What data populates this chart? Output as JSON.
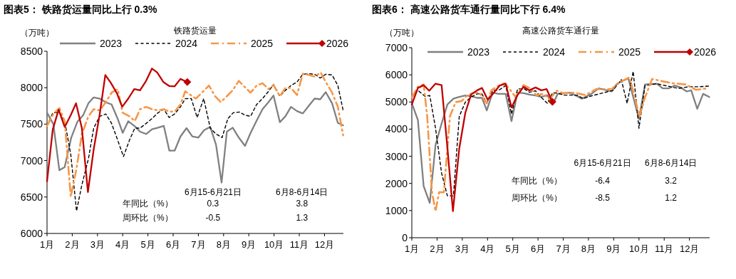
{
  "chart_data": [
    {
      "type": "line",
      "title": "图表5：  铁路货运量同比上行 0.3%",
      "subtitle": "铁路货运量",
      "ylabel": "（万吨）",
      "legend": "top",
      "xlim": [
        1,
        12.75
      ],
      "xticks": [
        {
          "value": 1,
          "label": "1月"
        },
        {
          "value": 2,
          "label": "2月"
        },
        {
          "value": 3,
          "label": "3月"
        },
        {
          "value": 4,
          "label": "4月"
        },
        {
          "value": 5,
          "label": "5月"
        },
        {
          "value": 6,
          "label": "6月"
        },
        {
          "value": 7,
          "label": "7月"
        },
        {
          "value": 8,
          "label": "8月"
        },
        {
          "value": 9,
          "label": "9月"
        },
        {
          "value": 10,
          "label": "10月"
        },
        {
          "value": 11,
          "label": "11月"
        },
        {
          "value": 12,
          "label": "12月"
        }
      ],
      "ylim": [
        6000,
        8500
      ],
      "yticks": [
        6000,
        6500,
        7000,
        7500,
        8000,
        8500
      ],
      "annotations": [
        "6月15-6月21日",
        "6月8-6月14日",
        "年同比（%）",
        "0.3",
        "3.8",
        "周环比（%）",
        "-0.5",
        "1.3"
      ],
      "series": [
        {
          "name": "2023",
          "color": "#808080",
          "line_style": "solid",
          "x": [
            1.0,
            1.25,
            1.49,
            1.7,
            1.96,
            2.2,
            2.43,
            2.64,
            2.85,
            3.09,
            3.33,
            3.56,
            3.8,
            4.0,
            4.22,
            4.46,
            4.69,
            4.93,
            5.16,
            5.4,
            5.63,
            5.85,
            6.06,
            6.29,
            6.53,
            6.76,
            7.0,
            7.23,
            7.47,
            7.7,
            7.92,
            8.13,
            8.36,
            8.6,
            8.85,
            9.07,
            9.31,
            9.54,
            9.78,
            9.98,
            10.23,
            10.45,
            10.67,
            10.91,
            11.14,
            11.38,
            11.61,
            11.83,
            12.05,
            12.3,
            12.53,
            12.74
          ],
          "values": [
            7656,
            7500,
            6867,
            6910,
            7315,
            7530,
            7620,
            7786,
            7867,
            7850,
            7800,
            7770,
            7575,
            7380,
            7540,
            7477,
            7396,
            7364,
            7429,
            7451,
            7477,
            7136,
            7136,
            7331,
            7445,
            7331,
            7315,
            7419,
            7461,
            7217,
            6698,
            7396,
            7451,
            7315,
            7201,
            7380,
            7549,
            7705,
            7802,
            7893,
            7526,
            7607,
            7737,
            7679,
            7646,
            7753,
            7851,
            7841,
            7938,
            7786,
            7516,
            7484
          ]
        },
        {
          "name": "2024",
          "color": "#000000",
          "line_style": "dashed",
          "x": [
            1.0,
            1.23,
            1.49,
            1.7,
            1.94,
            2.17,
            2.38,
            2.64,
            2.85,
            3.09,
            3.33,
            3.56,
            3.8,
            4.03,
            4.27,
            4.48,
            4.69,
            4.93,
            5.16,
            5.4,
            5.63,
            5.84,
            6.06,
            6.29,
            6.48,
            6.72,
            6.95,
            7.21,
            7.47,
            7.7,
            7.94,
            8.17,
            8.38,
            8.63,
            8.85,
            9.07,
            9.31,
            9.54,
            9.78,
            9.98,
            10.23,
            10.45,
            10.67,
            10.91,
            11.14,
            11.38,
            11.61,
            11.83,
            12.05,
            12.3,
            12.53,
            12.74
          ],
          "values": [
            7477,
            7656,
            7656,
            7542,
            7088,
            6308,
            6666,
            7023,
            7445,
            7607,
            7640,
            7510,
            7282,
            7055,
            7282,
            7445,
            7445,
            7510,
            7575,
            7656,
            7705,
            7591,
            7640,
            7737,
            7850,
            7851,
            7591,
            7851,
            7445,
            7364,
            7315,
            7575,
            7656,
            7666,
            7623,
            7607,
            7770,
            7851,
            7948,
            8045,
            7883,
            7964,
            8029,
            8078,
            8185,
            8192,
            8185,
            8133,
            8185,
            8175,
            8029,
            7688
          ]
        },
        {
          "name": "2025",
          "color": "#f79646",
          "line_style": "dashdot",
          "x": [
            1.0,
            1.25,
            1.49,
            1.7,
            1.94,
            2.17,
            2.38,
            2.64,
            2.85,
            3.09,
            3.33,
            3.56,
            3.8,
            4.0,
            4.27,
            4.48,
            4.69,
            4.93,
            5.16,
            5.4,
            5.63,
            5.84,
            6.06,
            6.29,
            6.48,
            6.9,
            7.14,
            7.42,
            7.66,
            7.89,
            8.13,
            8.36,
            8.6,
            8.83,
            9.07,
            9.31,
            9.54,
            9.78,
            9.98,
            10.23,
            10.45,
            10.67,
            10.91,
            11.14,
            11.38,
            11.61,
            11.85,
            12.05,
            12.3,
            12.53,
            12.74
          ],
          "values": [
            7477,
            7640,
            7721,
            7542,
            6503,
            6893,
            7364,
            7607,
            7705,
            7688,
            7802,
            7932,
            7981,
            7656,
            7607,
            7542,
            7705,
            7737,
            7705,
            7688,
            7705,
            7672,
            7672,
            7770,
            7950,
            7851,
            7932,
            8029,
            7883,
            7802,
            7883,
            7964,
            8094,
            8013,
            7932,
            8029,
            8062,
            7981,
            8036,
            7883,
            7997,
            7997,
            7899,
            8192,
            8175,
            8152,
            8208,
            8078,
            7932,
            7737,
            7347
          ]
        },
        {
          "name": "2026",
          "color": "#c00000",
          "line_style": "solid",
          "x": [
            1.0,
            1.23,
            1.46,
            1.7,
            1.94,
            2.15,
            2.38,
            2.62,
            2.85,
            3.09,
            3.31,
            3.54,
            3.78,
            3.98,
            4.22,
            4.46,
            4.69,
            4.93,
            5.16,
            5.37,
            5.61,
            5.84,
            6.06,
            6.29,
            6.56
          ],
          "values": [
            6714,
            7429,
            7698,
            7461,
            7623,
            7786,
            7445,
            6568,
            7153,
            7640,
            8175,
            8062,
            7916,
            7737,
            7851,
            7981,
            7964,
            8094,
            8263,
            8208,
            8078,
            8023,
            8019,
            8120,
            8078
          ]
        },
        {
          "type": "scatter",
          "color": "#c00000",
          "marker": "diamond",
          "x": [
            6.56
          ],
          "values": [
            8078
          ]
        }
      ]
    },
    {
      "type": "line",
      "title": "图表6：  高速公路货车通行量同比下行 6.4%",
      "subtitle": "高速公路货车通行量",
      "ylabel": "（万吨）",
      "legend": "top",
      "xlim": [
        1,
        12.8
      ],
      "xticks": [
        {
          "value": 1,
          "label": "1月"
        },
        {
          "value": 2,
          "label": "2月"
        },
        {
          "value": 3,
          "label": "3月"
        },
        {
          "value": 4,
          "label": "4月"
        },
        {
          "value": 5,
          "label": "5月"
        },
        {
          "value": 6,
          "label": "6月"
        },
        {
          "value": 7,
          "label": "7月"
        },
        {
          "value": 8,
          "label": "8月"
        },
        {
          "value": 9,
          "label": "9月"
        },
        {
          "value": 10,
          "label": "10月"
        },
        {
          "value": 11,
          "label": "11月"
        },
        {
          "value": 12,
          "label": "12月"
        }
      ],
      "ylim": [
        0,
        7000
      ],
      "yticks": [
        0,
        1000,
        2000,
        3000,
        4000,
        5000,
        6000,
        7000
      ],
      "annotations": [
        "6月15-6月21日",
        "6月8-6月14日",
        "年同比（%）",
        "-6.4",
        "3.2",
        "周环比（%）",
        "-8.5",
        "1.2"
      ],
      "series": [
        {
          "name": "2023",
          "color": "#808080",
          "line_style": "solid",
          "x": [
            1.0,
            1.24,
            1.47,
            1.71,
            1.94,
            2.18,
            2.41,
            2.65,
            2.88,
            3.12,
            3.35,
            3.59,
            3.78,
            3.97,
            4.2,
            4.44,
            4.72,
            4.95,
            5.19,
            5.43,
            5.66,
            5.9,
            6.13,
            6.37,
            6.58,
            6.78,
            7.27,
            7.74,
            8.12,
            8.4,
            8.92,
            9.11,
            9.34,
            9.58,
            10.0,
            10.24,
            10.71,
            10.94,
            11.18,
            11.41,
            11.65,
            11.89,
            12.07,
            12.31,
            12.54,
            12.79
          ],
          "values": [
            4950,
            4339,
            1900,
            1283,
            3422,
            4208,
            4906,
            5124,
            5186,
            5238,
            5212,
            5151,
            5151,
            4688,
            5343,
            5299,
            5299,
            4295,
            5343,
            5325,
            5273,
            5238,
            5186,
            5255,
            4906,
            5299,
            5343,
            5124,
            5299,
            5500,
            5387,
            5648,
            5779,
            5867,
            4382,
            5648,
            5674,
            5500,
            5500,
            5604,
            5535,
            5387,
            5430,
            4749,
            5299,
            5186
          ]
        },
        {
          "name": "2024",
          "color": "#000000",
          "line_style": "dashed",
          "x": [
            1.0,
            1.24,
            1.52,
            1.71,
            1.94,
            2.18,
            2.41,
            2.65,
            2.88,
            3.12,
            3.35,
            3.59,
            3.78,
            3.97,
            4.2,
            4.44,
            4.72,
            4.95,
            5.19,
            5.43,
            5.66,
            5.9,
            6.13,
            6.37,
            6.58,
            6.78,
            7.04,
            7.55,
            7.79,
            8.07,
            8.97,
            9.3,
            9.53,
            9.77,
            10.0,
            10.24,
            10.71,
            11.04,
            11.56,
            11.98,
            12.36,
            12.79
          ],
          "values": [
            5168,
            5430,
            5212,
            5238,
            4033,
            2375,
            1545,
            1545,
            4470,
            4994,
            5186,
            5299,
            5299,
            4950,
            5430,
            5430,
            5605,
            4557,
            5474,
            5500,
            5360,
            5413,
            5168,
            4950,
            5343,
            5325,
            5255,
            5255,
            5124,
            5212,
            5430,
            5823,
            4950,
            6128,
            4033,
            5604,
            5674,
            5605,
            5500,
            5561,
            5561,
            5587
          ]
        },
        {
          "name": "2025",
          "color": "#f79646",
          "line_style": "dashdot",
          "x": [
            1.0,
            1.24,
            1.47,
            1.61,
            1.8,
            1.94,
            2.08,
            2.27,
            2.51,
            2.74,
            2.98,
            3.21,
            3.45,
            3.68,
            3.97,
            4.15,
            4.44,
            4.67,
            4.91,
            5.11,
            5.43,
            5.66,
            5.94,
            6.23,
            6.45,
            6.75,
            6.99,
            7.46,
            7.88,
            8.31,
            8.92,
            9.16,
            9.63,
            10.02,
            10.24,
            10.52,
            10.85,
            11.32,
            11.84,
            12.26,
            12.71
          ],
          "values": [
            5168,
            5561,
            5648,
            4470,
            1676,
            978,
            1676,
            1676,
            4470,
            4994,
            5037,
            5255,
            5343,
            5343,
            4950,
            5430,
            5605,
            5692,
            5430,
            5186,
            5622,
            5517,
            5255,
            5299,
            5100,
            5413,
            5325,
            5343,
            5255,
            5474,
            5474,
            5692,
            5910,
            4470,
            5168,
            5849,
            5779,
            5692,
            5648,
            5448,
            5500
          ]
        },
        {
          "name": "2026",
          "color": "#c00000",
          "line_style": "solid",
          "x": [
            1.0,
            1.24,
            1.47,
            1.69,
            1.94,
            2.18,
            2.41,
            2.63,
            2.88,
            3.12,
            3.35,
            3.59,
            3.78,
            4.01,
            4.25,
            4.48,
            4.72,
            4.95,
            5.19,
            5.43,
            5.66,
            5.9,
            6.13,
            6.34,
            6.57
          ],
          "values": [
            4906,
            5517,
            5622,
            5413,
            5674,
            5622,
            3335,
            978,
            3291,
            4601,
            5273,
            5430,
            5517,
            5081,
            5343,
            5605,
            5674,
            4801,
            5255,
            5561,
            5430,
            5535,
            5430,
            5474,
            5010
          ]
        },
        {
          "type": "scatter",
          "color": "#c00000",
          "marker": "diamond",
          "x": [
            6.57
          ],
          "values": [
            5010
          ]
        }
      ]
    }
  ]
}
